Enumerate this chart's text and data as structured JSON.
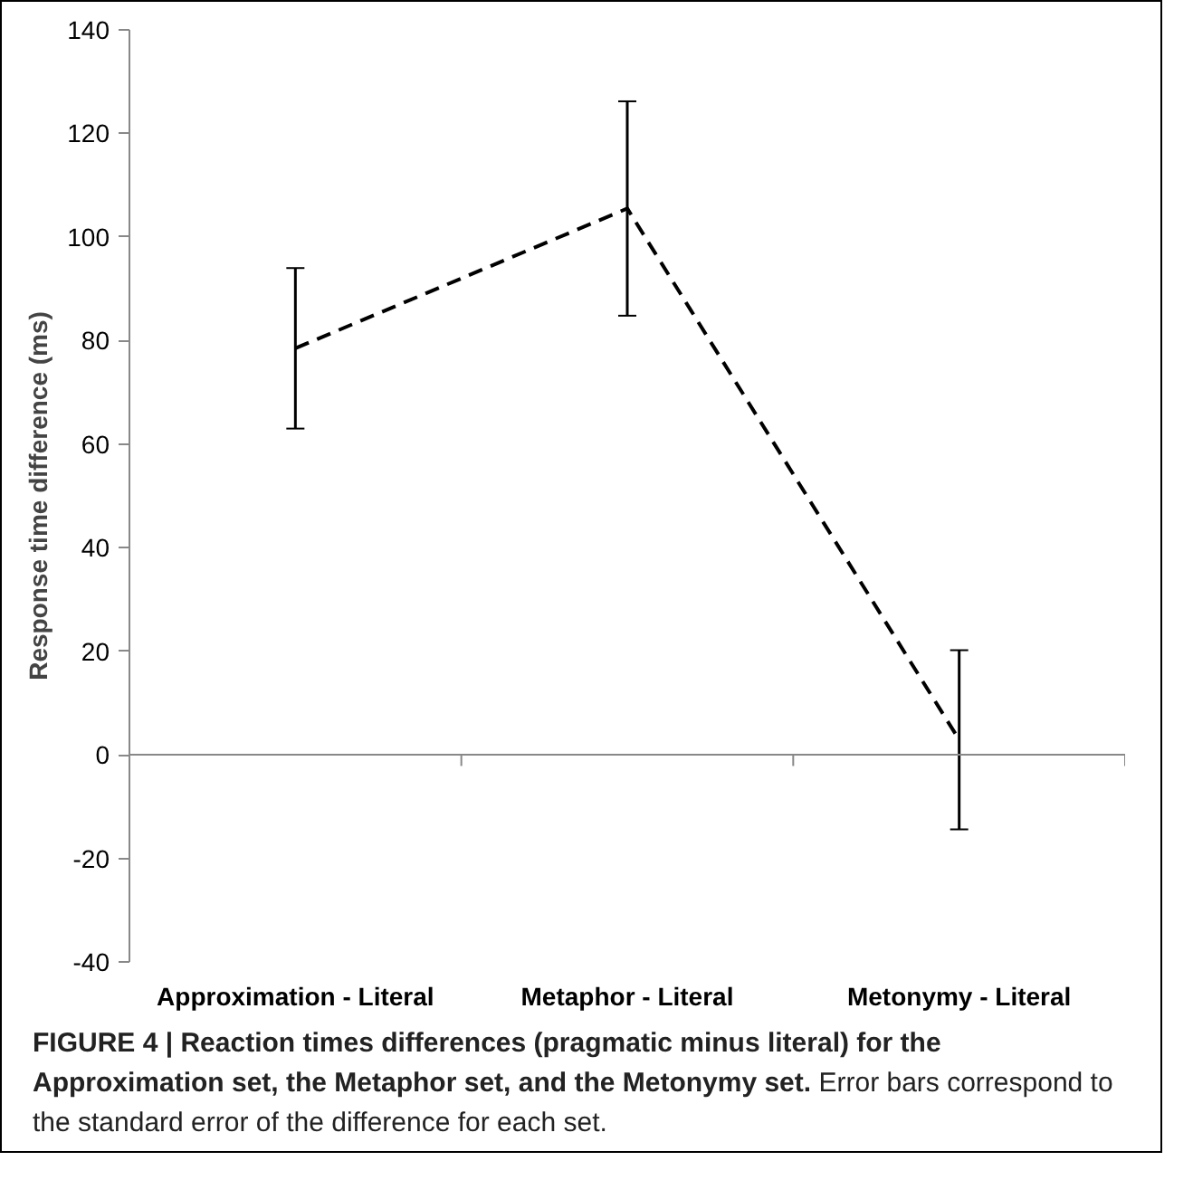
{
  "chart_data": {
    "type": "line",
    "title": "FIGURE 4 | Reaction times differences (pragmatic minus literal) for the Approximation set, the Metaphor set, and the Metonymy set.",
    "annotations": [
      "Error bars correspond to the standard error of the difference for each set."
    ],
    "ylabel": "Response time difference (ms)",
    "categories": [
      "Approximation - Literal",
      "Metaphor - Literal",
      "Metonymy - Literal"
    ],
    "series": [
      {
        "color": "#000000",
        "values": [
          78.5,
          105.5,
          2.9
        ],
        "errors": [
          15.5,
          20.7,
          17.3
        ]
      }
    ],
    "line_style": "dashed",
    "marker": "none",
    "ylim": [
      -40,
      140
    ],
    "yticks": [
      -40,
      -20,
      0,
      20,
      40,
      60,
      80,
      100,
      120,
      140
    ]
  }
}
